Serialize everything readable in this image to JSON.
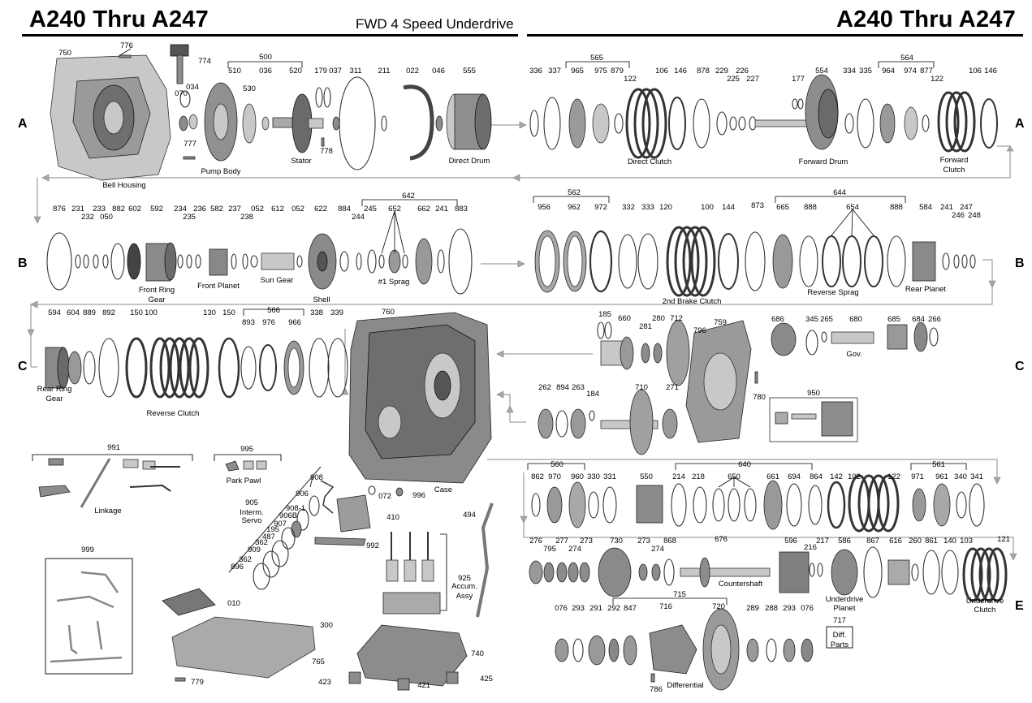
{
  "header": {
    "title_left": "A240 Thru A247",
    "subtitle": "FWD 4 Speed Underdrive",
    "title_right": "A240 Thru A247"
  },
  "rows": {
    "a": "A",
    "b": "B",
    "c": "C",
    "e": "E"
  },
  "numbers": {
    "n750": "750",
    "n776": "776",
    "n774": "774",
    "n034": "034",
    "n070": "070",
    "n777": "777",
    "n500": "500",
    "n510": "510",
    "n530": "530",
    "n036": "036",
    "n520": "520",
    "n179": "179",
    "n037": "037",
    "n311": "311",
    "n211": "211",
    "n022": "022",
    "n046": "046",
    "n555": "555",
    "n778": "778",
    "n336": "336",
    "n337": "337",
    "n565": "565",
    "n965": "965",
    "n975": "975",
    "n879": "879",
    "n122a": "122",
    "n106a": "106",
    "n146a": "146",
    "n878": "878",
    "n229": "229",
    "n225": "225",
    "n226": "226",
    "n227": "227",
    "n177": "177",
    "n554": "554",
    "n334": "334",
    "n335": "335",
    "n564": "564",
    "n964": "964",
    "n974": "974",
    "n877": "877",
    "n122b": "122",
    "n106b": "106",
    "n146b": "146",
    "n876": "876",
    "n231": "231",
    "n232": "232",
    "n233": "233",
    "n050": "050",
    "n882": "882",
    "n602": "602",
    "n592": "592",
    "n234": "234",
    "n235": "235",
    "n236": "236",
    "n582": "582",
    "n237": "237",
    "n238": "238",
    "n052a": "052",
    "n612": "612",
    "n052b": "052",
    "n622": "622",
    "n884": "884",
    "n642": "642",
    "n244": "244",
    "n245": "245",
    "n652": "652",
    "n662": "662",
    "n241a": "241",
    "n883": "883",
    "n562": "562",
    "n956": "956",
    "n962": "962",
    "n972": "972",
    "n332": "332",
    "n333": "333",
    "n120": "120",
    "n100a": "100",
    "n144": "144",
    "n873": "873",
    "n644": "644",
    "n665": "665",
    "n888a": "888",
    "n654": "654",
    "n888b": "888",
    "n584": "584",
    "n241b": "241",
    "n247": "247",
    "n246": "246",
    "n248": "248",
    "n594": "594",
    "n604": "604",
    "n889": "889",
    "n892": "892",
    "n150a": "150",
    "n100b": "100",
    "n130": "130",
    "n150b": "150",
    "n566": "566",
    "n893": "893",
    "n976": "976",
    "n966": "966",
    "n338": "338",
    "n339": "339",
    "n760": "760",
    "n185": "185",
    "n660": "660",
    "n281": "281",
    "n280": "280",
    "n712": "712",
    "n796": "796",
    "n759": "759",
    "n686": "686",
    "n345": "345",
    "n265": "265",
    "n680": "680",
    "n685": "685",
    "n684": "684",
    "n266": "266",
    "n262": "262",
    "n894": "894",
    "n263": "263",
    "n184": "184",
    "n710": "710",
    "n271": "271",
    "n780": "780",
    "n950": "950",
    "n991": "991",
    "n995": "995",
    "n908": "908",
    "n906": "906",
    "n905": "905",
    "n9081": "908-1",
    "n906b": "906B",
    "n907": "907",
    "n195": "195",
    "n487": "487",
    "n362a": "362",
    "n909": "909",
    "n362b": "362",
    "n896": "896",
    "n072": "072",
    "n996": "996",
    "n410": "410",
    "n992": "992",
    "n494": "494",
    "n925": "925",
    "n999": "999",
    "n010": "010",
    "n300": "300",
    "n765": "765",
    "n740": "740",
    "n779": "779",
    "n423": "423",
    "n421": "421",
    "n425": "425",
    "n560": "560",
    "n862": "862",
    "n970": "970",
    "n960": "960",
    "n330": "330",
    "n331": "331",
    "n550": "550",
    "n214": "214",
    "n640": "640",
    "n218": "218",
    "n650": "650",
    "n661": "661",
    "n694": "694",
    "n864": "864",
    "n142": "142",
    "n102": "102",
    "n122c": "122",
    "n561": "561",
    "n971": "971",
    "n961": "961",
    "n340": "340",
    "n341": "341",
    "n276": "276",
    "n795": "795",
    "n277": "277",
    "n274a": "274",
    "n273a": "273",
    "n730": "730",
    "n273b": "273",
    "n274b": "274",
    "n868": "868",
    "n676": "676",
    "n596": "596",
    "n216": "216",
    "n217": "217",
    "n586": "586",
    "n867": "867",
    "n616": "616",
    "n260": "260",
    "n861": "861",
    "n140": "140",
    "n103": "103",
    "n121": "121",
    "n715": "715",
    "n076a": "076",
    "n293a": "293",
    "n291": "291",
    "n292": "292",
    "n847": "847",
    "n716": "716",
    "n720": "720",
    "n289": "289",
    "n288": "288",
    "n293b": "293",
    "n076b": "076",
    "n717": "717",
    "n786": "786"
  },
  "captions": {
    "bell_housing": "Bell Housing",
    "pump_body": "Pump Body",
    "stator": "Stator",
    "direct_drum": "Direct Drum",
    "direct_clutch": "Direct Clutch",
    "forward_drum": "Forward Drum",
    "forward_clutch_1": "Forward",
    "forward_clutch_2": "Clutch",
    "front_ring_gear_1": "Front Ring",
    "front_ring_gear_2": "Gear",
    "front_planet": "Front Planet",
    "sun_gear": "Sun Gear",
    "shell": "Shell",
    "sprag1": "#1 Sprag",
    "brake_clutch2": "2nd Brake Clutch",
    "reverse_sprag": "Reverse Sprag",
    "rear_planet": "Rear Planet",
    "rear_ring_gear_1": "Rear Ring",
    "rear_ring_gear_2": "Gear",
    "reverse_clutch": "Reverse Clutch",
    "gov": "Gov.",
    "case": "Case",
    "linkage": "Linkage",
    "park_pawl": "Park Pawl",
    "interm_servo_1": "Interm.",
    "interm_servo_2": "Servo",
    "accum_assy_1": "Accum.",
    "accum_assy_2": "Assy",
    "countershaft": "Countershaft",
    "underdrive_planet_1": "Underdrive",
    "underdrive_planet_2": "Planet",
    "underdrive_clutch_1": "Underdrive",
    "underdrive_clutch_2": "Clutch",
    "differential": "Differential",
    "diff_parts_1": "Diff.",
    "diff_parts_2": "Parts"
  },
  "colors": {
    "ink": "#000000",
    "part_mid": "#8c8c8c",
    "part_light": "#c8c8c8",
    "part_dark": "#555555",
    "flow_arrow": "#a8a8a8"
  }
}
